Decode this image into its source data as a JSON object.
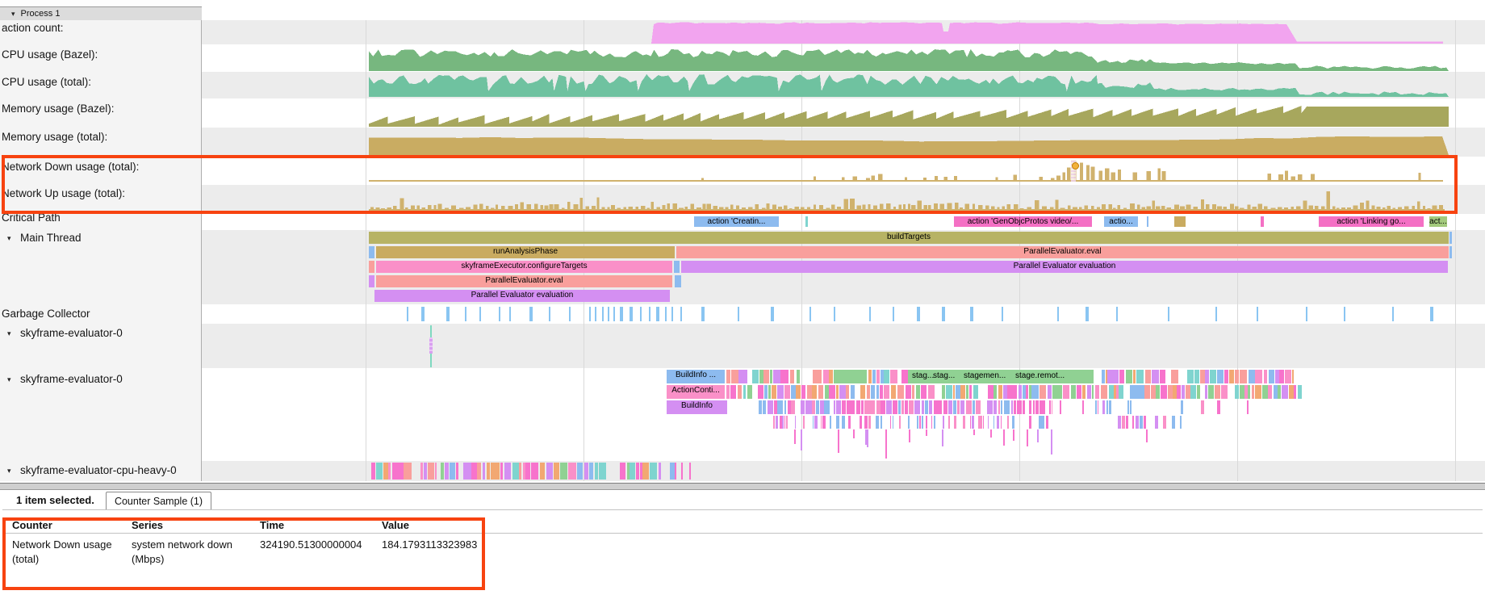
{
  "process_header": {
    "label": "Process 1"
  },
  "sidebar": {
    "tracks": [
      {
        "label": "action count:",
        "arrow": false
      },
      {
        "label": "CPU usage (Bazel):",
        "arrow": false
      },
      {
        "label": "CPU usage (total):",
        "arrow": false
      },
      {
        "label": "Memory usage (Bazel):",
        "arrow": false
      },
      {
        "label": "Memory usage (total):",
        "arrow": false
      },
      {
        "label": "Network Down usage (total):",
        "arrow": false
      },
      {
        "label": "Network Up usage (total):",
        "arrow": false
      },
      {
        "label": "Critical Path",
        "arrow": false
      },
      {
        "label": "Main Thread",
        "arrow": true
      },
      {
        "label": "Garbage Collector",
        "arrow": false
      },
      {
        "label": "skyframe-evaluator-0",
        "arrow": true
      },
      {
        "label": "skyframe-evaluator-0",
        "arrow": true
      },
      {
        "label": "skyframe-evaluator-cpu-heavy-0",
        "arrow": true
      }
    ]
  },
  "slices": {
    "action_creating": "action 'Creatin...",
    "action_genobjc": "action 'GenObjcProtos video/...",
    "action_short": "actio...",
    "action_linking": "action 'Linking go...",
    "action_tiny": "act...",
    "build_targets": "buildTargets",
    "run_analysis": "runAnalysisPhase",
    "parallel_eval": "ParallelEvaluator.eval",
    "configure_targets": "skyframeExecutor.configureTargets",
    "parallel_evaluation": "Parallel Evaluator evaluation",
    "buildinfo_ellipsis": "BuildInfo ...",
    "action_conti": "ActionConti...",
    "buildinfo": "BuildInfo",
    "stage1": "stag...",
    "stage2": "stag...",
    "stage3": "stagemen...",
    "stage4": "stage.remot..."
  },
  "bottom_panel": {
    "selected_text": "1 item selected.",
    "tab_label": "Counter Sample (1)",
    "table": {
      "headers": [
        "Counter",
        "Series",
        "Time",
        "Value"
      ],
      "row": {
        "counter": "Network Down usage (total)",
        "series": "system network down (Mbps)",
        "time": "324190.51300000004",
        "value": "184.1793113323983"
      }
    }
  },
  "colors": {
    "annotation_red": "#f74310",
    "action_count": "#f2a4ef",
    "cpu_bazel": "#77b77f",
    "cpu_total": "#6fc2a0",
    "mem_bazel": "#a7a75d",
    "mem_total": "#c9ac62",
    "network": "#d0b26d",
    "slice_blue": "#8dbbef",
    "slice_salmon": "#f99f9c",
    "slice_hotpink": "#fa90c8",
    "slice_violet": "#d48ff2",
    "slice_olive": "#b7b365",
    "slice_tan": "#c9ab60",
    "crit_pink": "#f470c4",
    "slice_green": "#a3ca7c",
    "stage_green": "#90d193",
    "gc_blue": "#8ac5f2",
    "teal_tick": "#7fd4cf",
    "marker_orange": "#f2b23d"
  }
}
